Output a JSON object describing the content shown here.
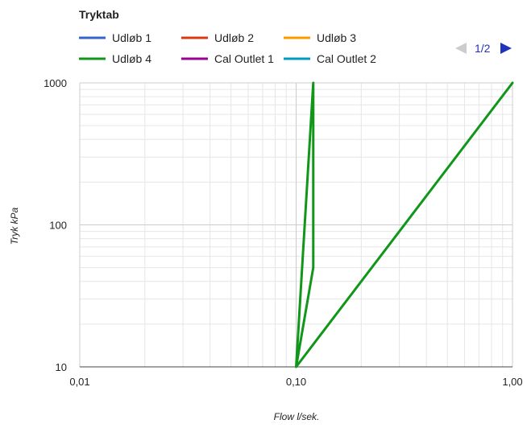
{
  "chart_data": {
    "type": "line",
    "title": "Tryktab",
    "xlabel": "Flow l/sek.",
    "ylabel": "Tryk kPa",
    "x_scale": "log",
    "y_scale": "log",
    "xlim": [
      0.01,
      1.0
    ],
    "ylim": [
      10,
      1000
    ],
    "x_ticks": [
      0.01,
      0.1,
      1.0
    ],
    "x_tick_labels": [
      "0,01",
      "0,10",
      "1,00"
    ],
    "y_ticks": [
      10,
      100,
      1000
    ],
    "y_tick_labels": [
      "10",
      "100",
      "1000"
    ],
    "grid": true,
    "legend_position": "top",
    "legend_page": "1/2",
    "series": [
      {
        "name": "Udløb 1",
        "color": "#3366cc",
        "x": [],
        "y": []
      },
      {
        "name": "Udløb 2",
        "color": "#dc3912",
        "x": [],
        "y": []
      },
      {
        "name": "Udløb 3",
        "color": "#ff9900",
        "x": [],
        "y": []
      },
      {
        "name": "Udløb 4",
        "color": "#109618",
        "x": [
          0.1,
          0.12,
          0.12,
          0.1,
          1.0
        ],
        "y": [
          10,
          50,
          1000,
          10,
          1000
        ]
      },
      {
        "name": "Cal Outlet 1",
        "color": "#990099",
        "x": [],
        "y": []
      },
      {
        "name": "Cal Outlet 2",
        "color": "#0099c6",
        "x": [],
        "y": []
      }
    ]
  }
}
